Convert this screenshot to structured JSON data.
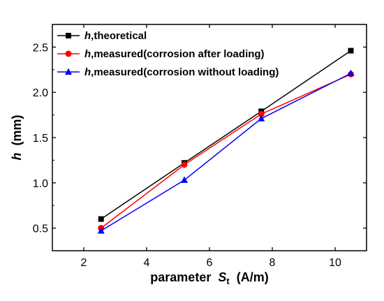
{
  "chart_data": {
    "type": "line",
    "xlabel": {
      "prefix": "parameter",
      "var": "S",
      "sub": "t",
      "unit": "(A/m)"
    },
    "ylabel": {
      "var": "h",
      "unit": "(mm)"
    },
    "xlim": [
      1,
      11
    ],
    "ylim": [
      0.25,
      2.75
    ],
    "xticks": [
      2,
      4,
      6,
      8,
      10
    ],
    "yticks": [
      0.5,
      1.0,
      1.5,
      2.0,
      2.5
    ],
    "xtick_labels": [
      "2",
      "4",
      "6",
      "8",
      "10"
    ],
    "ytick_labels": [
      "0.5",
      "1.0",
      "1.5",
      "2.0",
      "2.5"
    ],
    "grid": false,
    "legend_position": "top-left",
    "series": [
      {
        "var": "h",
        "rest": ",theoretical",
        "color": "#000000",
        "marker": "square",
        "x": [
          2.55,
          5.2,
          7.65,
          10.5
        ],
        "y": [
          0.6,
          1.22,
          1.79,
          2.46
        ]
      },
      {
        "var": "h",
        "rest": ",measured(corrosion after loading)",
        "color": "#ff0000",
        "marker": "circle",
        "x": [
          2.55,
          5.2,
          7.65,
          10.5
        ],
        "y": [
          0.5,
          1.2,
          1.76,
          2.2
        ]
      },
      {
        "var": "h",
        "rest": ",measured(corrosion without loading)",
        "color": "#0000ff",
        "marker": "triangle",
        "x": [
          2.55,
          5.2,
          7.65,
          10.5
        ],
        "y": [
          0.47,
          1.03,
          1.71,
          2.21
        ]
      }
    ]
  }
}
